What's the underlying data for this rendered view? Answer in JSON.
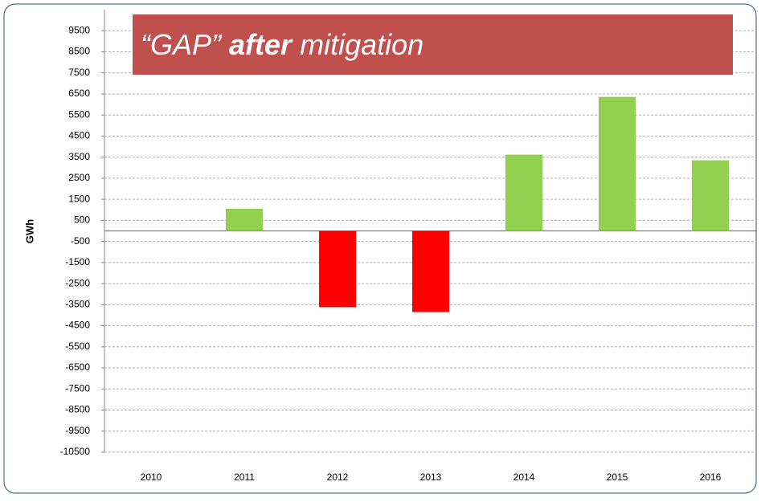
{
  "chart_data": {
    "type": "bar",
    "title": [
      "“GAP”",
      "after",
      "mitigation"
    ],
    "y_label": "GWh",
    "categories": [
      "2010",
      "2011",
      "2012",
      "2013",
      "2014",
      "2015",
      "2016"
    ],
    "values": [
      0,
      1050,
      -3620,
      -3850,
      3620,
      6360,
      3350
    ],
    "positive_color": "#92d050",
    "negative_color": "#ff0000",
    "ylim": [
      -10500,
      10500
    ],
    "yticks": [
      -10500,
      -9500,
      -8500,
      -7500,
      -6500,
      -5500,
      -4500,
      -3500,
      -2500,
      -1500,
      -500,
      500,
      1500,
      2500,
      3500,
      4500,
      5500,
      6500,
      7500,
      8500,
      9500
    ],
    "grid": true
  }
}
